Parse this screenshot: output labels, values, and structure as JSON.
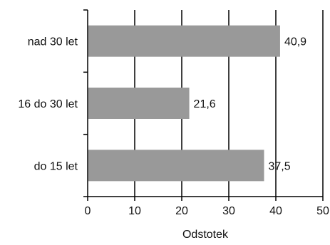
{
  "chart_data": {
    "type": "bar",
    "orientation": "horizontal",
    "categories": [
      "nad 30 let",
      "16 do 30 let",
      "do 15 let"
    ],
    "values": [
      40.9,
      21.6,
      37.5
    ],
    "value_labels": [
      "40,9",
      "21,6",
      "37,5"
    ],
    "xlabel": "Odstotek",
    "xlim": [
      0,
      50
    ],
    "x_ticks": [
      "0",
      "10",
      "20",
      "30",
      "40",
      "50"
    ],
    "grid": "vertical",
    "bar_color": "#999999",
    "grid_color": "#000000"
  }
}
